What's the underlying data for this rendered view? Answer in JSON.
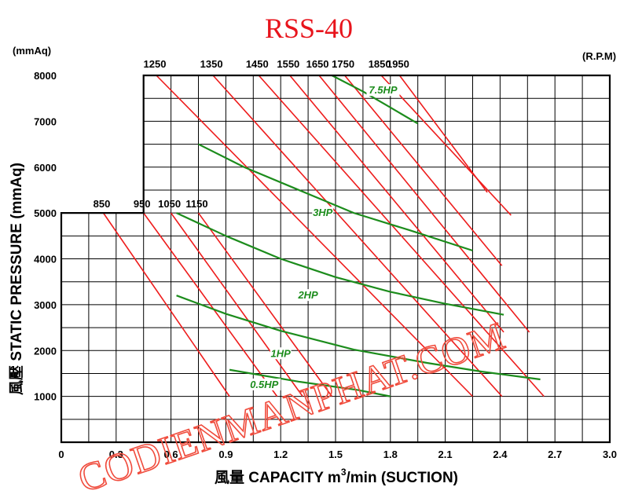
{
  "chart_data": {
    "type": "line",
    "title": "RSS-40",
    "y_unit": "(mmAq)",
    "rpm_unit": "(R.P.M)",
    "ylabel": "風壓  STATIC  PRESSURE  (mmAq)",
    "xlabel_prefix": "風量  CAPACITY  m",
    "xlabel_sup": "3",
    "xlabel_suffix": "/min (SUCTION)",
    "xlim": [
      0,
      3.0
    ],
    "ylim": [
      0,
      8000
    ],
    "x_ticks": [
      0,
      0.3,
      0.6,
      0.9,
      1.2,
      1.5,
      1.8,
      2.1,
      2.4,
      2.7,
      3.0
    ],
    "x_tick_labels": [
      "0",
      "0.3",
      "0.6",
      "0.9",
      "1.2",
      "1.5",
      "1.8",
      "2.1",
      "2.4",
      "2.7",
      "3.0"
    ],
    "y_ticks": [
      1000,
      2000,
      3000,
      4000,
      5000,
      6000,
      7000,
      8000
    ],
    "y_tick_labels": [
      "1000",
      "2000",
      "3000",
      "4000",
      "5000",
      "6000",
      "7000",
      "8000"
    ],
    "grid": true,
    "rpm_series": [
      {
        "name": "850",
        "label_row": "lower",
        "points": [
          [
            0.23,
            5000
          ],
          [
            0.92,
            1000
          ]
        ]
      },
      {
        "name": "950",
        "label_row": "lower",
        "points": [
          [
            0.45,
            5000
          ],
          [
            1.18,
            1000
          ]
        ]
      },
      {
        "name": "1050",
        "label_row": "lower",
        "points": [
          [
            0.6,
            5000
          ],
          [
            1.32,
            1000
          ]
        ]
      },
      {
        "name": "1150",
        "label_row": "lower",
        "points": [
          [
            0.75,
            5000
          ],
          [
            1.48,
            1000
          ]
        ]
      },
      {
        "name": "1250",
        "label_row": "upper",
        "points": [
          [
            0.52,
            8000
          ],
          [
            2.25,
            1000
          ]
        ]
      },
      {
        "name": "1350",
        "label_row": "upper",
        "points": [
          [
            0.83,
            8000
          ],
          [
            2.41,
            1000
          ]
        ]
      },
      {
        "name": "1450",
        "label_row": "upper",
        "points": [
          [
            1.08,
            8000
          ],
          [
            2.64,
            1000
          ]
        ]
      },
      {
        "name": "1550",
        "label_row": "upper",
        "points": [
          [
            1.25,
            8000
          ],
          [
            2.42,
            2400
          ]
        ]
      },
      {
        "name": "1650",
        "label_row": "upper",
        "points": [
          [
            1.41,
            8000
          ],
          [
            2.56,
            2400
          ]
        ]
      },
      {
        "name": "1750",
        "label_row": "upper",
        "points": [
          [
            1.55,
            8000
          ],
          [
            2.41,
            3850
          ]
        ]
      },
      {
        "name": "1850",
        "label_row": "upper",
        "points": [
          [
            1.75,
            8000
          ],
          [
            2.46,
            4950
          ]
        ]
      },
      {
        "name": "1950",
        "label_row": "upper",
        "points": [
          [
            1.85,
            8000
          ],
          [
            2.33,
            5450
          ]
        ]
      }
    ],
    "hp_series": [
      {
        "name": "0.5HP",
        "label_at": [
          1.11,
          1200
        ],
        "points": [
          [
            0.92,
            1580
          ],
          [
            1.3,
            1320
          ],
          [
            1.62,
            1140
          ],
          [
            1.8,
            1000
          ]
        ]
      },
      {
        "name": "1HP",
        "label_at": [
          1.2,
          1880
        ],
        "points": [
          [
            0.63,
            3200
          ],
          [
            0.9,
            2800
          ],
          [
            1.2,
            2430
          ],
          [
            1.6,
            2020
          ],
          [
            2.0,
            1730
          ],
          [
            2.3,
            1540
          ],
          [
            2.62,
            1370
          ]
        ]
      },
      {
        "name": "2HP",
        "label_at": [
          1.35,
          3150
        ],
        "points": [
          [
            0.63,
            5000
          ],
          [
            0.9,
            4500
          ],
          [
            1.2,
            4000
          ],
          [
            1.5,
            3600
          ],
          [
            1.8,
            3280
          ],
          [
            2.1,
            3020
          ],
          [
            2.42,
            2780
          ]
        ]
      },
      {
        "name": "3HP",
        "label_at": [
          1.43,
          4950
        ],
        "points": [
          [
            0.75,
            6500
          ],
          [
            1.0,
            6000
          ],
          [
            1.3,
            5500
          ],
          [
            1.6,
            5000
          ],
          [
            1.9,
            4630
          ],
          [
            2.25,
            4180
          ]
        ]
      },
      {
        "name": "7.5HP",
        "label_at": [
          1.76,
          7620
        ],
        "points": [
          [
            1.48,
            8000
          ],
          [
            1.65,
            7650
          ],
          [
            1.8,
            7300
          ],
          [
            1.95,
            6950
          ]
        ]
      }
    ]
  },
  "watermark": "CODIENMANPHAT.COM"
}
